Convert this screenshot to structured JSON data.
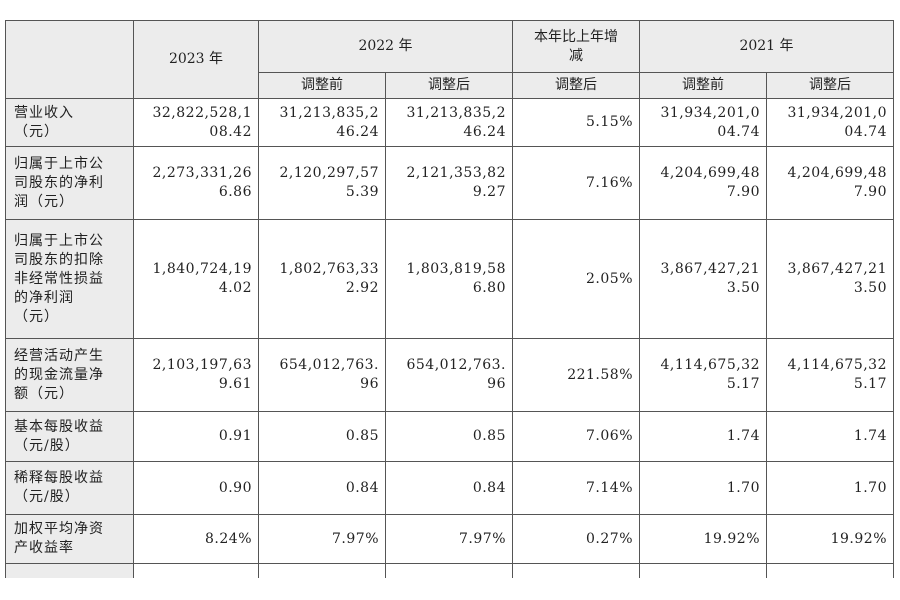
{
  "header": {
    "year_2023": "2023 年",
    "year_2022": "2022 年",
    "change": "本年比上年增\n减",
    "year_2021": "2021 年",
    "before_2022": "调整前",
    "after_2022": "调整后",
    "change_after": "调整后",
    "before_2021": "调整前",
    "after_2021": "调整后"
  },
  "rows": [
    {
      "label": "营业收入\n（元）",
      "v2023": "32,822,528,1\n08.42",
      "v2022_before": "31,213,835,2\n46.24",
      "v2022_after": "31,213,835,2\n46.24",
      "change": "5.15%",
      "v2021_before": "31,934,201,0\n04.74",
      "v2021_after": "31,934,201,0\n04.74"
    },
    {
      "label": "归属于上市公\n司股东的净利\n润（元）",
      "v2023": "2,273,331,26\n6.86",
      "v2022_before": "2,120,297,57\n5.39",
      "v2022_after": "2,121,353,82\n9.27",
      "change": "7.16%",
      "v2021_before": "4,204,699,48\n7.90",
      "v2021_after": "4,204,699,48\n7.90"
    },
    {
      "label": "归属于上市公\n司股东的扣除\n非经常性损益\n的净利润\n（元）",
      "v2023": "1,840,724,19\n4.02",
      "v2022_before": "1,802,763,33\n2.92",
      "v2022_after": "1,803,819,58\n6.80",
      "change": "2.05%",
      "v2021_before": "3,867,427,21\n3.50",
      "v2021_after": "3,867,427,21\n3.50"
    },
    {
      "label": "经营活动产生\n的现金流量净\n额（元）",
      "v2023": "2,103,197,63\n9.61",
      "v2022_before": "654,012,763.\n96",
      "v2022_after": "654,012,763.\n96",
      "change": "221.58%",
      "v2021_before": "4,114,675,32\n5.17",
      "v2021_after": "4,114,675,32\n5.17"
    },
    {
      "label": "基本每股收益\n（元/股）",
      "v2023": "0.91",
      "v2022_before": "0.85",
      "v2022_after": "0.85",
      "change": "7.06%",
      "v2021_before": "1.74",
      "v2021_after": "1.74"
    },
    {
      "label": "稀释每股收益\n（元/股）",
      "v2023": "0.90",
      "v2022_before": "0.84",
      "v2022_after": "0.84",
      "change": "7.14%",
      "v2021_before": "1.70",
      "v2021_after": "1.70"
    },
    {
      "label": "加权平均净资\n产收益率",
      "v2023": "8.24%",
      "v2022_before": "7.97%",
      "v2022_after": "7.97%",
      "change": "0.27%",
      "v2021_before": "19.92%",
      "v2021_after": "19.92%"
    }
  ]
}
